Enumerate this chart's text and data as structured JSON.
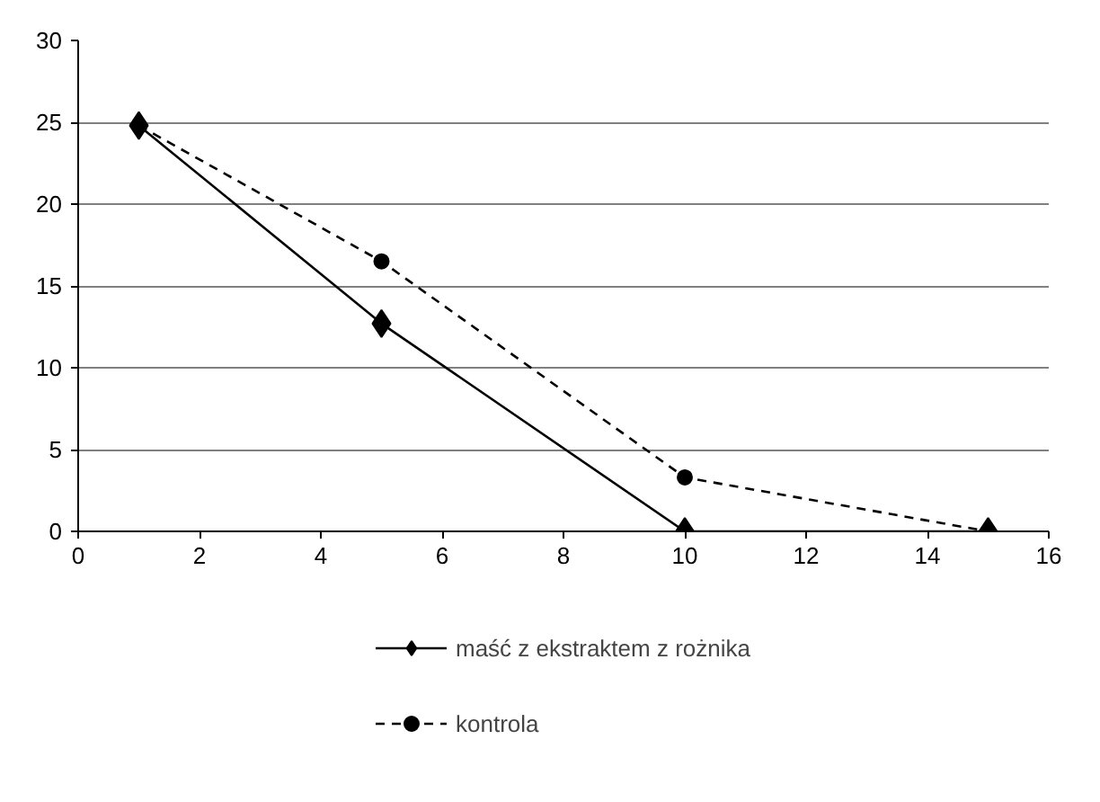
{
  "chart_data": {
    "type": "line",
    "x": [
      1,
      5,
      10,
      15
    ],
    "series": [
      {
        "name": "maść z ekstraktem z rożnika",
        "color": "#000000",
        "values": [
          24.8,
          12.7,
          0,
          0
        ],
        "marker": "diamond",
        "line_style": "solid"
      },
      {
        "name": "kontrola",
        "color": "#000000",
        "values": [
          24.8,
          16.5,
          3.3,
          0
        ],
        "marker": "circle",
        "line_style": "dashed"
      }
    ],
    "xlim": [
      0,
      16
    ],
    "xticks": [
      0,
      2,
      4,
      6,
      8,
      10,
      12,
      14,
      16
    ],
    "ylim": [
      0,
      30
    ],
    "yticks": [
      0,
      5,
      10,
      15,
      20,
      25,
      30
    ],
    "grid": "y",
    "legend": "bottom"
  }
}
